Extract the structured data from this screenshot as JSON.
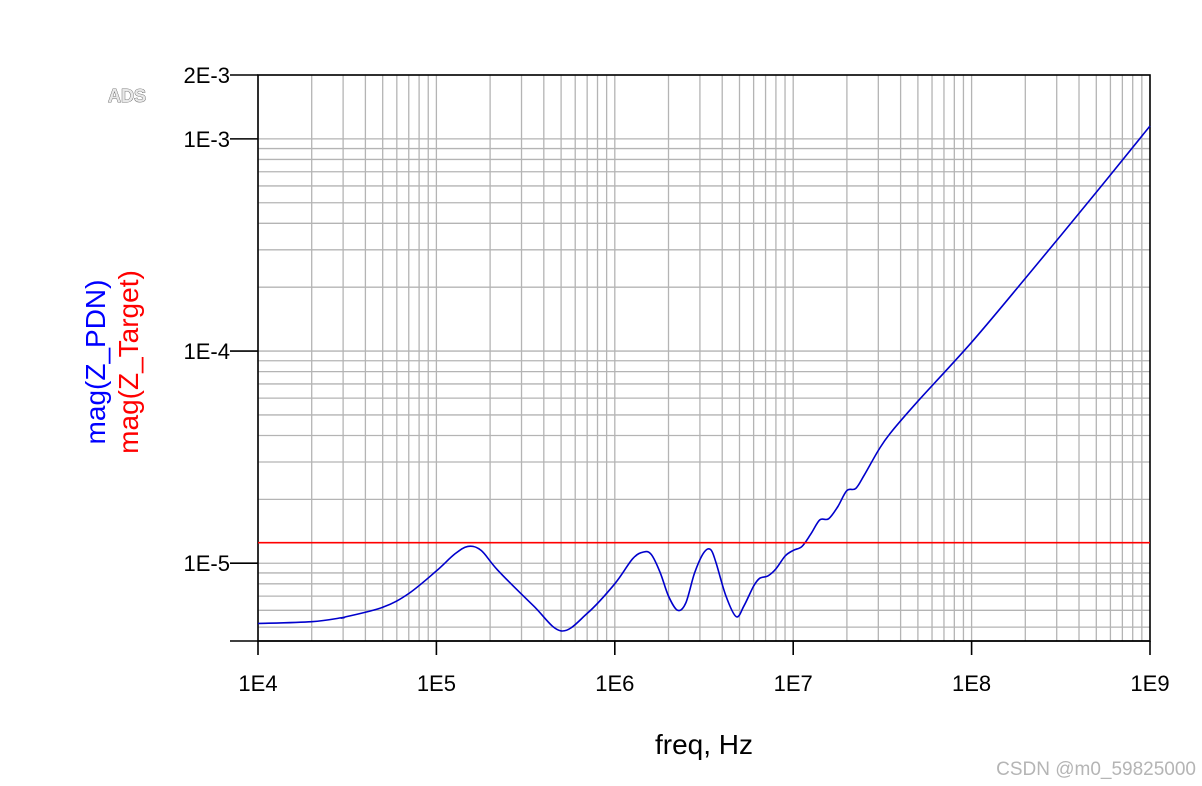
{
  "badge": "ADS",
  "watermark": "CSDN @m0_59825000",
  "chart_data": {
    "type": "line",
    "xlabel": "freq, Hz",
    "ylabel_lines": [
      {
        "text": "mag(Z_PDN)",
        "color": "#0000ff"
      },
      {
        "text": "mag(Z_Target)",
        "color": "#ff0000"
      }
    ],
    "x_scale": "log",
    "y_scale": "log",
    "xlim": [
      10000.0,
      1000000000.0
    ],
    "ylim": [
      4.3e-06,
      0.002
    ],
    "x_ticks": [
      {
        "value": 10000.0,
        "label": "1E4"
      },
      {
        "value": 100000.0,
        "label": "1E5"
      },
      {
        "value": 1000000.0,
        "label": "1E6"
      },
      {
        "value": 10000000.0,
        "label": "1E7"
      },
      {
        "value": 100000000.0,
        "label": "1E8"
      },
      {
        "value": 1000000000.0,
        "label": "1E9"
      }
    ],
    "y_ticks": [
      {
        "value": 1e-05,
        "label": "1E-5"
      },
      {
        "value": 0.0001,
        "label": "1E-4"
      },
      {
        "value": 0.001,
        "label": "1E-3"
      },
      {
        "value": 0.002,
        "label": "2E-3"
      }
    ],
    "grid": true,
    "series": [
      {
        "name": "mag(Z_PDN)",
        "color": "#0000cc",
        "x": [
          10000.0,
          20000.0,
          30000.0,
          50000.0,
          70000.0,
          100000.0,
          126000.0,
          150000.0,
          178000.0,
          220000.0,
          30000.0,
          350000.0,
          500000.0,
          700000.0,
          1000000.0,
          1260000.0,
          1450000.0,
          1600000.0,
          1800000.0,
          2000000.0,
          2250000.0,
          2500000.0,
          2800000.0,
          3150000.0,
          3450000.0,
          3700000.0,
          4200000.0,
          4800000.0,
          5300000.0,
          6000000.0,
          6500000.0,
          7200000.0,
          8000000.0,
          9000000.0,
          10000000.0,
          11200000.0,
          12600000.0,
          14100000.0,
          15800000.0,
          17800000.0,
          20000000.0,
          22400000.0,
          25000000.0,
          30000000.0,
          35000000.0,
          50000000.0,
          100000000.0,
          200000000.0,
          500000000.0,
          1000000000.0
        ],
        "y": [
          5.2e-06,
          5.3e-06,
          5.55e-06,
          6.2e-06,
          7.2e-06,
          9.2e-06,
          1.1e-05,
          1.2e-05,
          1.15e-05,
          9.3e-06,
          5.55e-06,
          6.3e-06,
          4.8e-06,
          5.8e-06,
          8e-06,
          1.05e-05,
          1.13e-05,
          1.1e-05,
          9e-06,
          7e-06,
          6e-06,
          6.5e-06,
          9e-06,
          1.12e-05,
          1.16e-05,
          1e-05,
          7e-06,
          5.6e-06,
          6.3e-06,
          7.8e-06,
          8.5e-06,
          8.7e-06,
          9.4e-06,
          1.08e-05,
          1.15e-05,
          1.2e-05,
          1.38e-05,
          1.6e-05,
          1.62e-05,
          1.85e-05,
          2.2e-05,
          2.25e-05,
          2.6e-05,
          3.4e-05,
          4.1e-05,
          5.8e-05,
          0.00011,
          0.00022,
          0.00056,
          0.00115
        ]
      },
      {
        "name": "mag(Z_Target)",
        "color": "#ff0000",
        "x": [
          10000.0,
          1000000000.0
        ],
        "y": [
          1.25e-05,
          1.25e-05
        ]
      }
    ]
  }
}
